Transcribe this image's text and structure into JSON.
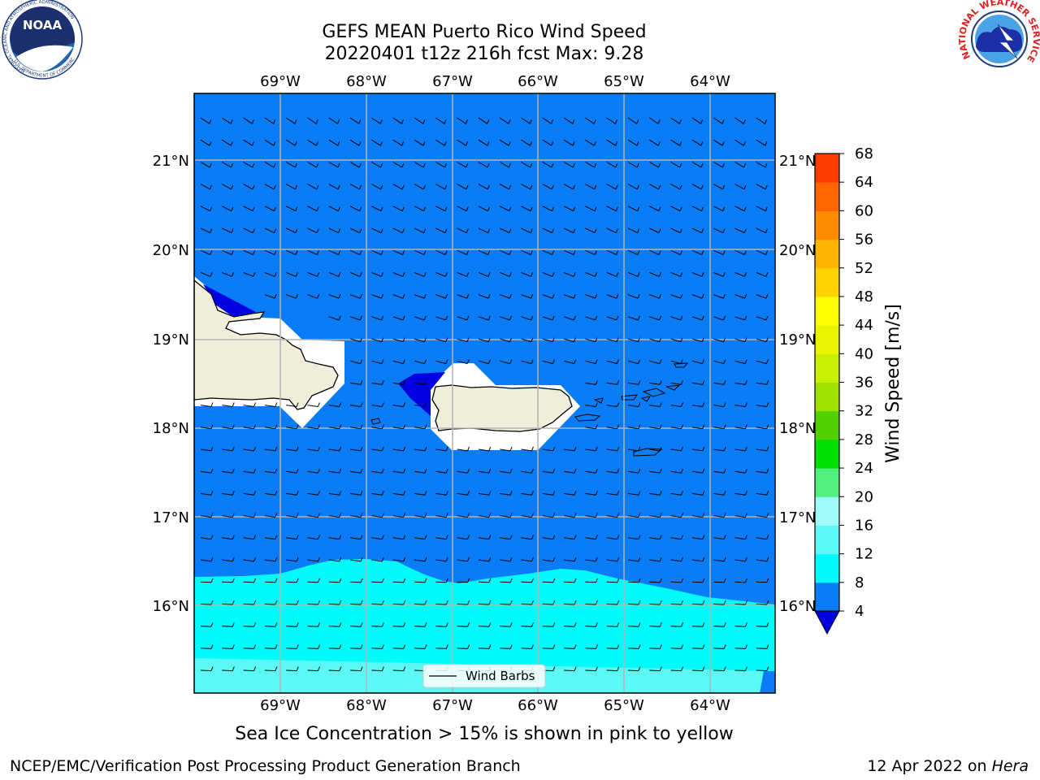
{
  "header": {
    "title_line1": "GEFS MEAN Puerto Rico Wind Speed",
    "title_line2": "20220401 t12z 216h fcst   Max: 9.28"
  },
  "logos": {
    "left": {
      "text": "NOAA",
      "ring_text": "NATIONAL OCEANIC AND ATMOSPHERIC ADMINISTRATION",
      "bottom_text": "U.S. DEPARTMENT OF COMMERCE"
    },
    "right": {
      "ring_text": "NATIONAL WEATHER SERVICE"
    }
  },
  "map": {
    "lon_labels": [
      "69°W",
      "68°W",
      "67°W",
      "66°W",
      "65°W",
      "64°W"
    ],
    "lat_labels": [
      "21°N",
      "20°N",
      "19°N",
      "18°N",
      "17°N",
      "16°N"
    ],
    "legend_label": "Wind Barbs",
    "colors": {
      "ocean_4_8": "#0a7cf6",
      "band_8_12": "#00fbfb",
      "band_12_16": "#5cf8f6",
      "land": "#f0eedb",
      "low_lt4": "#0000e0",
      "grid": "#b4b4b4"
    }
  },
  "colorbar": {
    "label": "Wind Speed [m/s]",
    "ticks": [
      "4",
      "8",
      "12",
      "16",
      "20",
      "24",
      "28",
      "32",
      "36",
      "40",
      "44",
      "48",
      "52",
      "56",
      "60",
      "64",
      "68"
    ],
    "colors": [
      "#0a7cf6",
      "#00fbfb",
      "#5cf8f6",
      "#a0fbf8",
      "#50f080",
      "#00e000",
      "#50d000",
      "#a0e000",
      "#c8f000",
      "#e8f400",
      "#ffff00",
      "#ffd200",
      "#ffb400",
      "#ff8c00",
      "#ff6400",
      "#ff3c00",
      "#ff0000"
    ],
    "extend_color": "#0000e0"
  },
  "subtitle": "Sea Ice Concentration > 15% is shown in pink to yellow",
  "footer": {
    "left": "NCEP/EMC/Verification Post Processing Product Generation Branch",
    "right_prefix": "12 Apr 2022 on",
    "right_em": "Hera"
  }
}
